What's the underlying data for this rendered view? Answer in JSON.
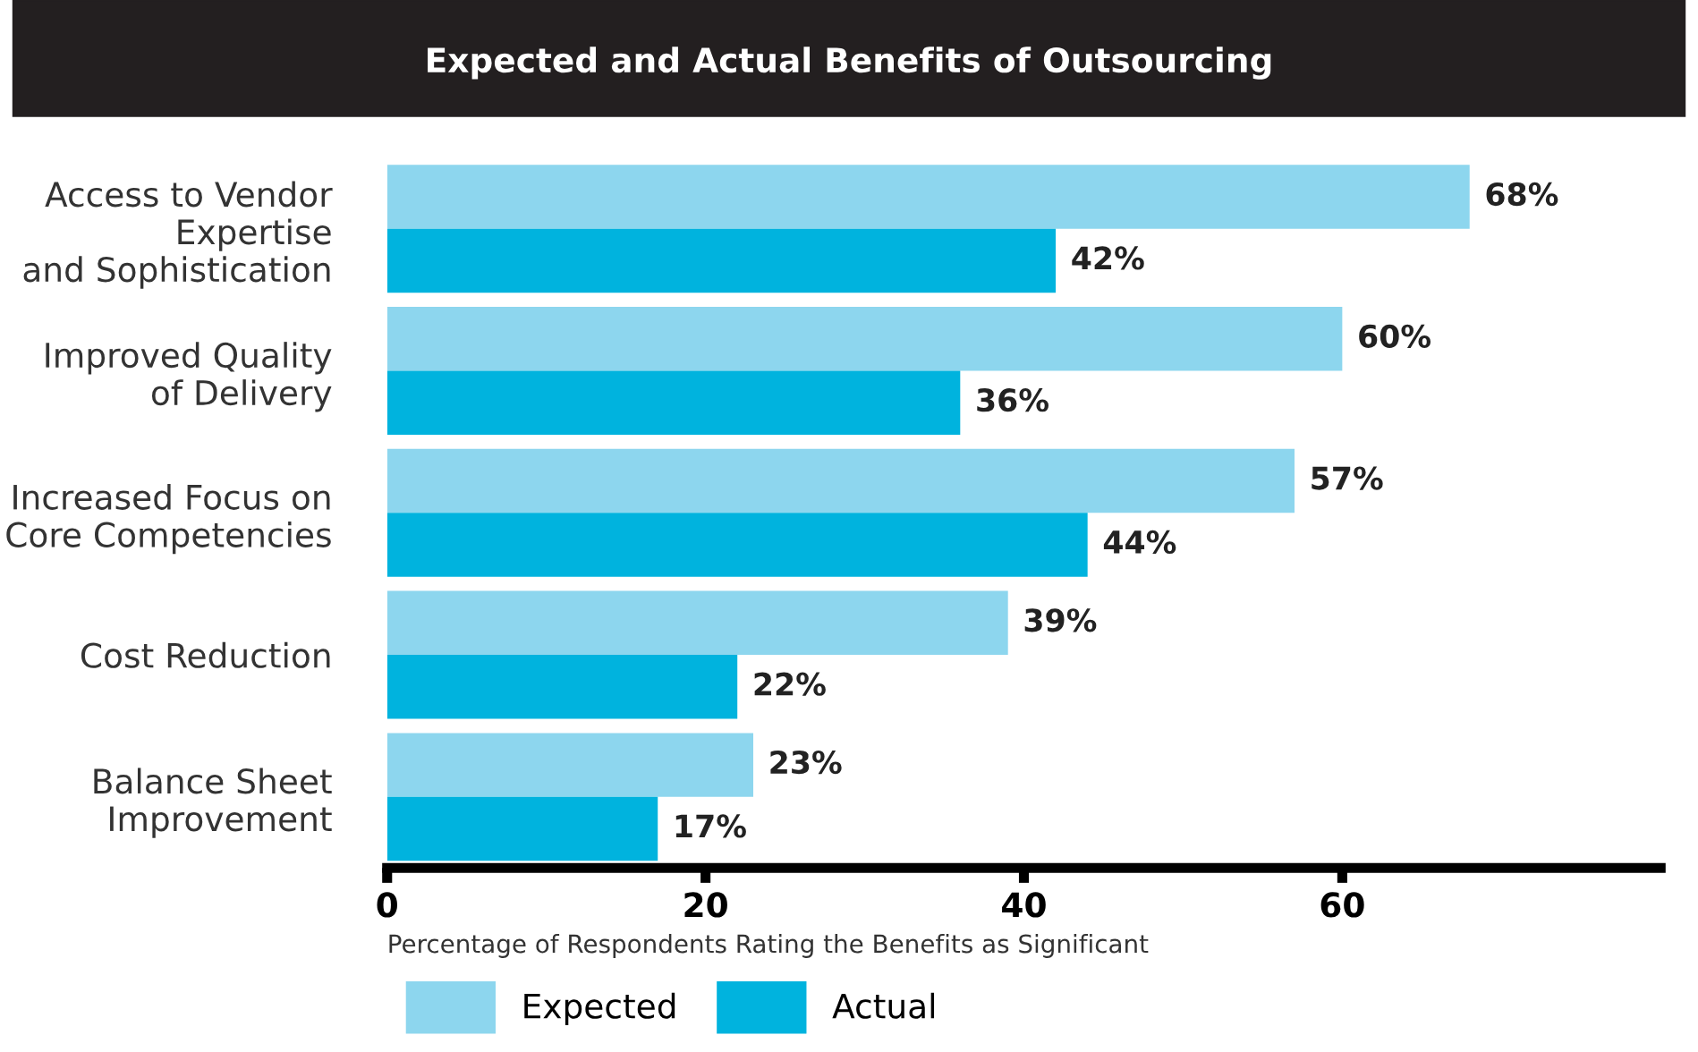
{
  "chart_data": {
    "type": "bar",
    "orientation": "horizontal",
    "title": "Expected and Actual Benefits of Outsourcing",
    "categories": [
      "Access to Vendor\nExpertise\nand Sophistication",
      "Improved Quality\nof Delivery",
      "Increased Focus on\nCore Competencies",
      "Cost Reduction",
      "Balance Sheet\nImprovement"
    ],
    "series": [
      {
        "name": "Expected",
        "color": "#8dd6ee",
        "values": [
          68,
          60,
          57,
          39,
          23
        ],
        "value_labels": [
          "68%",
          "60%",
          "57%",
          "39%",
          "23%"
        ]
      },
      {
        "name": "Actual",
        "color": "#00b3de",
        "values": [
          42,
          36,
          44,
          22,
          17
        ],
        "value_labels": [
          "42%",
          "36%",
          "44%",
          "22%",
          "17%"
        ]
      }
    ],
    "xlabel": "Percentage of Respondents Rating the Benefits as Significant",
    "xlim": [
      0,
      80
    ],
    "xticks": [
      0,
      20,
      40,
      60
    ],
    "grid": false,
    "legend": "bottom left"
  }
}
